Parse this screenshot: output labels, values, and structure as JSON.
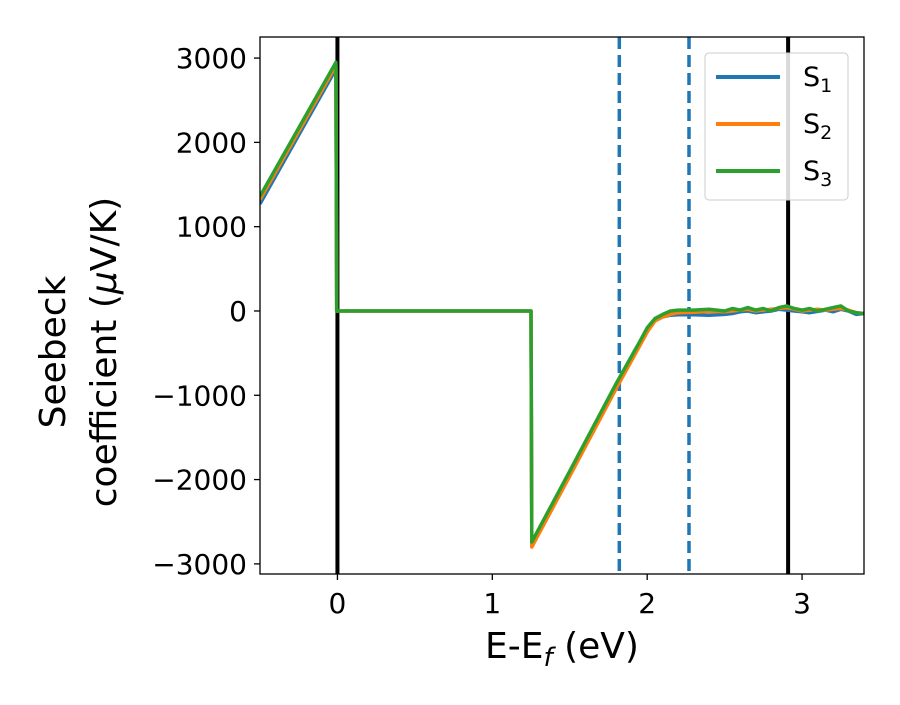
{
  "chart_data": {
    "type": "line",
    "xlabel": {
      "main": "E-E",
      "sub": "f",
      "suffix": " (eV)"
    },
    "ylabel": {
      "line1": "Seebeck",
      "line2_prefix": "coefficient  (",
      "line2_mu": "μ",
      "line2_suffix": "V/K)"
    },
    "xlim": [
      -0.5,
      3.4
    ],
    "ylim": [
      -3120,
      3250
    ],
    "xticks": [
      {
        "value": 0,
        "label": "0"
      },
      {
        "value": 1,
        "label": "1"
      },
      {
        "value": 2,
        "label": "2"
      },
      {
        "value": 3,
        "label": "3"
      }
    ],
    "yticks": [
      {
        "value": 3000,
        "label": "3000"
      },
      {
        "value": 2000,
        "label": "2000"
      },
      {
        "value": 1000,
        "label": "1000"
      },
      {
        "value": 0,
        "label": "0"
      },
      {
        "value": -1000,
        "label": "−1000"
      },
      {
        "value": -2000,
        "label": "−2000"
      },
      {
        "value": -3000,
        "label": "−3000"
      }
    ],
    "vlines": [
      {
        "x": 0.0,
        "style": "solid",
        "color": "#000000"
      },
      {
        "x": 2.91,
        "style": "solid",
        "color": "#000000"
      },
      {
        "x": 1.82,
        "style": "dashed",
        "color": "#1f77b4"
      },
      {
        "x": 2.27,
        "style": "dashed",
        "color": "#1f77b4"
      }
    ],
    "legend": {
      "placement": "top-right"
    },
    "series": [
      {
        "name": "S",
        "sub": "1",
        "color": "#1f77b4",
        "x": [
          -0.5,
          -0.01,
          -0.005,
          1.25,
          1.255,
          1.5,
          1.8,
          1.95,
          2.0,
          2.05,
          2.1,
          2.15,
          2.2,
          2.3,
          2.4,
          2.5,
          2.55,
          2.6,
          2.65,
          2.7,
          2.75,
          2.8,
          2.85,
          2.9,
          2.95,
          3.0,
          3.05,
          3.1,
          3.15,
          3.2,
          3.25,
          3.3,
          3.35,
          3.4
        ],
        "y": [
          1270,
          2870,
          0,
          0,
          -2770,
          -1920,
          -900,
          -400,
          -230,
          -110,
          -70,
          -50,
          -45,
          -45,
          -50,
          -40,
          -30,
          -10,
          0,
          -20,
          -10,
          0,
          20,
          10,
          0,
          -10,
          -20,
          -5,
          10,
          -10,
          20,
          0,
          -40,
          -30
        ]
      },
      {
        "name": "S",
        "sub": "2",
        "color": "#ff7f0e",
        "x": [
          -0.5,
          -0.01,
          -0.005,
          1.25,
          1.255,
          1.5,
          1.8,
          1.95,
          2.0,
          2.05,
          2.1,
          2.15,
          2.2,
          2.3,
          2.4,
          2.5,
          2.55,
          2.6,
          2.65,
          2.7,
          2.75,
          2.8,
          2.85,
          2.9,
          2.95,
          3.0,
          3.05,
          3.1,
          3.15,
          3.2,
          3.25,
          3.3,
          3.35,
          3.4
        ],
        "y": [
          1320,
          2910,
          0,
          0,
          -2800,
          -1960,
          -920,
          -420,
          -250,
          -120,
          -70,
          -40,
          -20,
          -15,
          -5,
          -10,
          0,
          10,
          20,
          0,
          10,
          20,
          30,
          40,
          20,
          0,
          10,
          20,
          10,
          20,
          30,
          10,
          -20,
          -30
        ]
      },
      {
        "name": "S",
        "sub": "3",
        "color": "#2ca02c",
        "x": [
          -0.5,
          -0.01,
          -0.005,
          1.25,
          1.255,
          1.5,
          1.8,
          1.95,
          2.0,
          2.05,
          2.1,
          2.15,
          2.2,
          2.3,
          2.4,
          2.5,
          2.55,
          2.6,
          2.65,
          2.7,
          2.75,
          2.8,
          2.85,
          2.9,
          2.95,
          3.0,
          3.05,
          3.1,
          3.15,
          3.2,
          3.25,
          3.3,
          3.35,
          3.4
        ],
        "y": [
          1360,
          2950,
          0,
          0,
          -2740,
          -1900,
          -860,
          -370,
          -200,
          -90,
          -40,
          0,
          10,
          10,
          20,
          0,
          30,
          10,
          40,
          10,
          30,
          0,
          40,
          60,
          30,
          10,
          30,
          0,
          20,
          40,
          60,
          0,
          -20,
          -30
        ]
      }
    ]
  }
}
